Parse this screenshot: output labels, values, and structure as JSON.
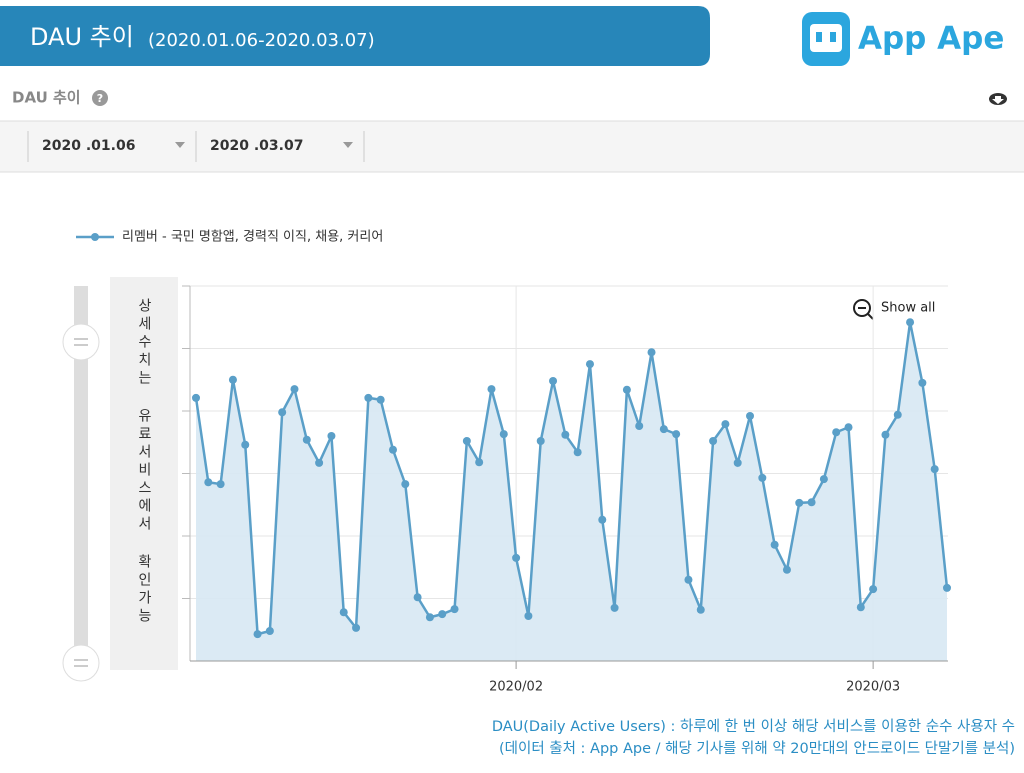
{
  "header": {
    "title": "DAU 추이",
    "period": "(2020.01.06-2020.03.07)",
    "logo": "App Ape"
  },
  "section": {
    "title": "DAU 추이"
  },
  "filters": {
    "start": "2020 .01.06",
    "end": "2020 .03.07"
  },
  "side_note": "상세수치는 유료서비스에서 확인가능",
  "zoom": "Show all",
  "footnote": [
    "DAU(Daily Active Users) : 하루에 한 번 이상 해당 서비스를 이용한 순수 사용자 수",
    "(데이터 출처 : App Ape / 해당 기사를 위해 약 20만대의 안드로이드 단말기를 분석)"
  ],
  "chart_data": {
    "type": "line",
    "categories": [
      null,
      null,
      null,
      null,
      null,
      null,
      null,
      null,
      null,
      null,
      null,
      null,
      null,
      null,
      null,
      null,
      null,
      null,
      null,
      null,
      null,
      null,
      null,
      null,
      null,
      null,
      "2020/02",
      null,
      null,
      null,
      null,
      null,
      null,
      null,
      null,
      null,
      null,
      null,
      null,
      null,
      null,
      null,
      null,
      null,
      null,
      null,
      null,
      null,
      null,
      null,
      null,
      null,
      null,
      null,
      null,
      "2020/03",
      null,
      null,
      null,
      null,
      null,
      null
    ],
    "series": [
      {
        "name": "리멤버 - 국민 명함앱, 경력직 이직, 채용, 커리어",
        "color": "#5a9fc8",
        "values": [
          4.21,
          2.86,
          2.83,
          4.5,
          3.46,
          0.43,
          0.48,
          3.98,
          4.35,
          3.54,
          3.17,
          3.6,
          0.78,
          0.53,
          4.21,
          4.18,
          3.38,
          2.83,
          1.02,
          0.7,
          0.75,
          0.83,
          3.52,
          3.18,
          4.35,
          3.63,
          1.65,
          0.72,
          3.52,
          4.48,
          3.62,
          3.34,
          4.75,
          2.26,
          0.85,
          4.34,
          3.76,
          4.94,
          3.71,
          3.63,
          1.3,
          0.82,
          3.52,
          3.79,
          3.17,
          3.92,
          2.93,
          1.86,
          1.46,
          2.53,
          2.54,
          2.91,
          3.66,
          3.74,
          0.86,
          1.15,
          3.62,
          3.94,
          5.42,
          4.45,
          3.07,
          1.17
        ]
      }
    ],
    "ylim": [
      0,
      6
    ],
    "ygrid": [
      1,
      2,
      3,
      4,
      5
    ],
    "area": true,
    "legend": "top-left"
  }
}
